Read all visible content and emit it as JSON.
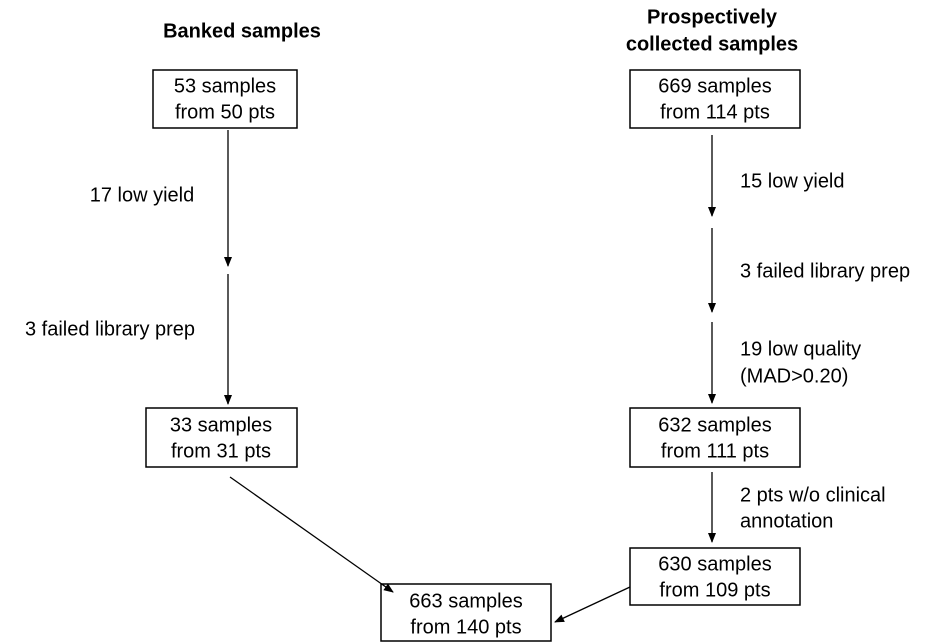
{
  "headers": {
    "banked": [
      "Banked samples"
    ],
    "prospective": [
      "Prospectively",
      "collected samples"
    ]
  },
  "nodes": [
    {
      "id": "banked-start",
      "lines": [
        "53 samples",
        "from 50 pts"
      ]
    },
    {
      "id": "prospective-start",
      "lines": [
        "669 samples",
        "from 114 pts"
      ]
    },
    {
      "id": "banked-end",
      "lines": [
        "33 samples",
        "from 31 pts"
      ]
    },
    {
      "id": "prospective-mid",
      "lines": [
        "632 samples",
        "from 111 pts"
      ]
    },
    {
      "id": "prospective-end",
      "lines": [
        "630 samples",
        "from 109 pts"
      ]
    },
    {
      "id": "final",
      "lines": [
        "663 samples",
        "from 140 pts"
      ]
    }
  ],
  "exclusions": {
    "banked": [
      [
        "17 low yield"
      ],
      [
        "3 failed library prep"
      ]
    ],
    "prospective": [
      [
        "15 low yield"
      ],
      [
        "3 failed library prep"
      ],
      [
        "19 low quality",
        "(MAD>0.20)"
      ],
      [
        "2 pts w/o clinical",
        "annotation"
      ]
    ]
  }
}
